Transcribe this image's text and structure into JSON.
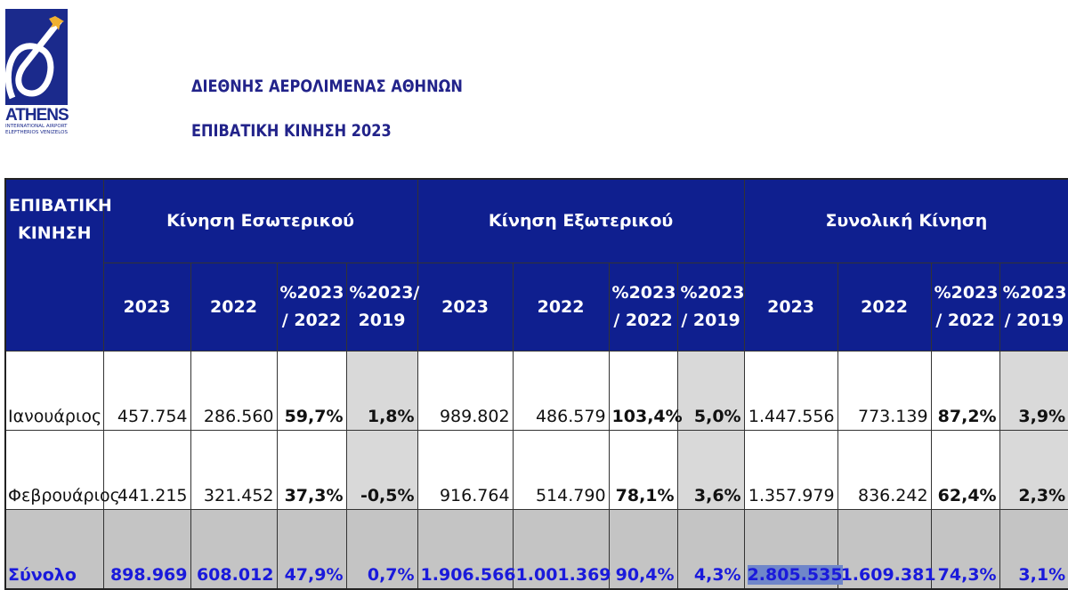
{
  "logo": {
    "brand": "ATHENS",
    "line1": "INTERNATIONAL AIRPORT",
    "line2": "ELEFTHERIOS VENIZELOS"
  },
  "header": {
    "title": "ΔΙΕΘΝΗΣ ΑΕΡΟΛΙΜΕΝΑΣ ΑΘΗΝΩΝ",
    "subtitle": "ΕΠΙΒΑΤΙΚΗ ΚΙΝΗΣΗ 2023"
  },
  "colors": {
    "header_bg": "#0f1f8f",
    "total_text": "#1a1adb",
    "gray": "#d9d9d9"
  },
  "table": {
    "corner": "ΕΠΙΒΑΤΙΚΗ ΚΙΝΗΣΗ",
    "groups": [
      "Κίνηση Εσωτερικού",
      "Κίνηση Εξωτερικού",
      "Συνολική Κίνηση"
    ],
    "subheaders": [
      "2023",
      "2022",
      "%2023 / 2022",
      "%2023/ 2019",
      "2023",
      "2022",
      "%2023 / 2022",
      "%2023 / 2019",
      "2023",
      "2022",
      "%2023 / 2022",
      "%2023 / 2019"
    ],
    "rows": [
      {
        "label": "Ιανουάριος",
        "values": [
          "457.754",
          "286.560",
          "59,7%",
          "1,8%",
          "989.802",
          "486.579",
          "103,4%",
          "5,0%",
          "1.447.556",
          "773.139",
          "87,2%",
          "3,9%"
        ]
      },
      {
        "label": "Φεβρουάριος",
        "values": [
          "441.215",
          "321.452",
          "37,3%",
          "-0,5%",
          "916.764",
          "514.790",
          "78,1%",
          "3,6%",
          "1.357.979",
          "836.242",
          "62,4%",
          "2,3%"
        ]
      }
    ],
    "total": {
      "label": "Σύνολο",
      "values": [
        "898.969",
        "608.012",
        "47,9%",
        "0,7%",
        "1.906.566",
        "1.001.369",
        "90,4%",
        "4,3%",
        "2.805.535",
        "1.609.381",
        "74,3%",
        "3,1%"
      ]
    }
  }
}
